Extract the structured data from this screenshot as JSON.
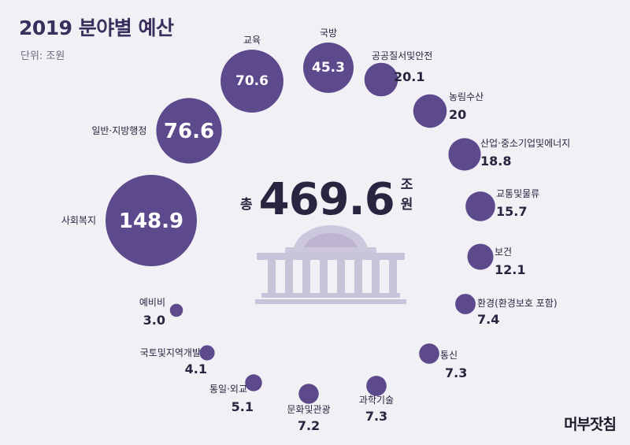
{
  "title": "2019 분야별 예산",
  "unit_label": "단위: 조원",
  "total": {
    "prefix": "총",
    "value": "469.6",
    "suffix": "조원"
  },
  "logo": "머부잣침",
  "colors": {
    "bubble": "#5c4a8c",
    "text": "#2b2440",
    "building": "#c9c3da",
    "background": "#f1f0f5"
  },
  "chart_data": {
    "type": "bubble",
    "title": "2019 분야별 예산",
    "unit": "조원",
    "total": 469.6,
    "categories": [
      "사회복지",
      "일반·지방행정",
      "교육",
      "국방",
      "공공질서및안전",
      "농림수산",
      "산업·중소기업및에너지",
      "교통및물류",
      "보건",
      "환경(환경보호 포함)",
      "통신",
      "과학기술",
      "문화및관광",
      "통일·외교",
      "국토및지역개발",
      "예비비"
    ],
    "values": [
      148.9,
      76.6,
      70.6,
      45.3,
      20.1,
      20,
      18.8,
      15.7,
      12.1,
      7.4,
      7.3,
      7.3,
      7.2,
      5.1,
      4.1,
      3.0
    ],
    "value_labels": [
      "148.9",
      "76.6",
      "70.6",
      "45.3",
      "20.1",
      "20",
      "18.8",
      "15.7",
      "12.1",
      "7.4",
      "7.3",
      "7.3",
      "7.2",
      "5.1",
      "4.1",
      "3.0"
    ]
  }
}
